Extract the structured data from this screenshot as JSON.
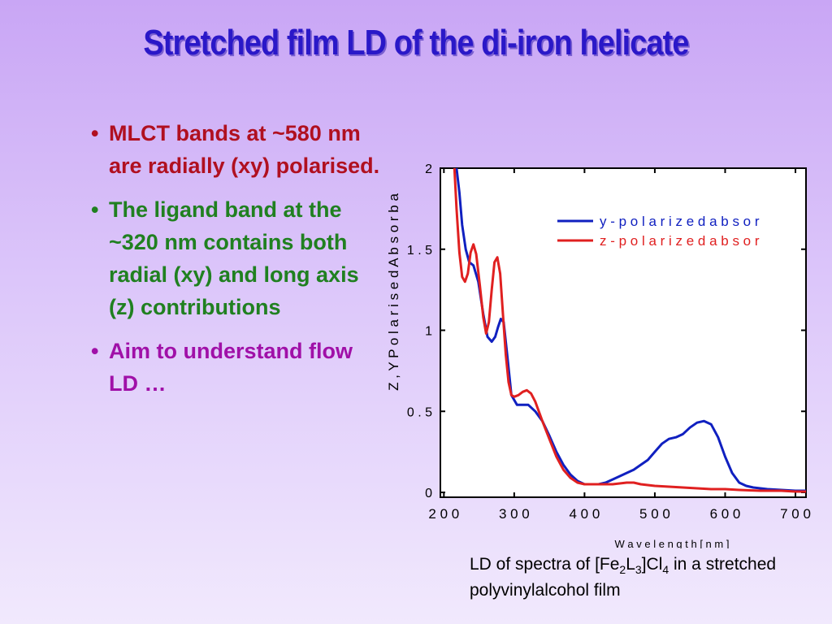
{
  "title": "Stretched film LD of the di-iron helicate",
  "bullets": [
    {
      "text": "MLCT bands at ~580 nm are radially (xy) polarised.",
      "color": "#b01020"
    },
    {
      "text": "The ligand band at the ~320 nm contains both radial (xy) and long axis (z) contributions",
      "color": "#208020"
    },
    {
      "text": "Aim to understand flow LD …",
      "color": "#a010a8"
    }
  ],
  "caption": {
    "prefix": "LD of spectra of [Fe",
    "sub1": "2",
    "mid1": "L",
    "sub2": "3",
    "mid2": "]Cl",
    "sub3": "4",
    "suffix": " in a stretched polyvinylalcohol film"
  },
  "chart_data": {
    "type": "line",
    "xlabel": "W a v e l e n g t h [ n m ]",
    "ylabel": "Z , Y P o l a r i s e d A b s o r b a",
    "xlim": [
      195,
      715
    ],
    "ylim": [
      -0.03,
      2.0
    ],
    "xticks": [
      200,
      300,
      400,
      500,
      600,
      700
    ],
    "xtick_labels": [
      "2 0 0",
      "3 0 0",
      "4 0 0",
      "5 0 0",
      "6 0 0",
      "7 0 0"
    ],
    "yticks": [
      0,
      0.5,
      1,
      1.5,
      2
    ],
    "ytick_labels": [
      "0",
      "0 . 5",
      "1",
      "1 . 5",
      "2"
    ],
    "legend_position": "top-right",
    "series": [
      {
        "name": "y - p o l a r i z e d   a b s o r",
        "color": "#1020c0",
        "x": [
          218,
          222,
          226,
          231,
          236,
          242,
          249,
          256,
          262,
          268,
          273,
          277,
          281,
          285,
          290,
          296,
          304,
          312,
          320,
          330,
          340,
          350,
          360,
          370,
          380,
          390,
          400,
          410,
          420,
          430,
          440,
          450,
          460,
          470,
          480,
          490,
          500,
          510,
          520,
          530,
          540,
          550,
          560,
          570,
          580,
          590,
          600,
          610,
          620,
          630,
          640,
          660,
          680,
          700,
          715
        ],
        "y": [
          2.0,
          1.85,
          1.65,
          1.5,
          1.42,
          1.4,
          1.3,
          1.1,
          0.96,
          0.93,
          0.96,
          1.02,
          1.07,
          1.05,
          0.85,
          0.6,
          0.54,
          0.54,
          0.54,
          0.5,
          0.44,
          0.35,
          0.25,
          0.17,
          0.11,
          0.07,
          0.05,
          0.05,
          0.05,
          0.06,
          0.08,
          0.1,
          0.12,
          0.14,
          0.17,
          0.2,
          0.25,
          0.3,
          0.33,
          0.34,
          0.36,
          0.4,
          0.43,
          0.44,
          0.42,
          0.34,
          0.22,
          0.12,
          0.06,
          0.04,
          0.03,
          0.02,
          0.015,
          0.01,
          0.01
        ]
      },
      {
        "name": "z - p o l a r i z e d   a b s o r",
        "color": "#e02020",
        "x": [
          215,
          218,
          222,
          226,
          230,
          234,
          238,
          242,
          246,
          251,
          256,
          260,
          264,
          268,
          272,
          276,
          280,
          284,
          288,
          292,
          296,
          300,
          306,
          312,
          318,
          324,
          330,
          340,
          350,
          360,
          370,
          380,
          390,
          400,
          410,
          420,
          430,
          440,
          450,
          460,
          470,
          480,
          500,
          520,
          540,
          560,
          580,
          600,
          620,
          650,
          680,
          700,
          715
        ],
        "y": [
          2.0,
          1.75,
          1.48,
          1.33,
          1.3,
          1.35,
          1.48,
          1.53,
          1.47,
          1.28,
          1.08,
          0.98,
          1.05,
          1.25,
          1.42,
          1.45,
          1.35,
          1.1,
          0.85,
          0.68,
          0.6,
          0.59,
          0.6,
          0.62,
          0.63,
          0.61,
          0.56,
          0.44,
          0.33,
          0.22,
          0.14,
          0.09,
          0.06,
          0.05,
          0.05,
          0.05,
          0.05,
          0.05,
          0.055,
          0.06,
          0.06,
          0.05,
          0.04,
          0.035,
          0.03,
          0.025,
          0.02,
          0.02,
          0.015,
          0.01,
          0.01,
          0.005,
          0.005
        ]
      }
    ]
  }
}
